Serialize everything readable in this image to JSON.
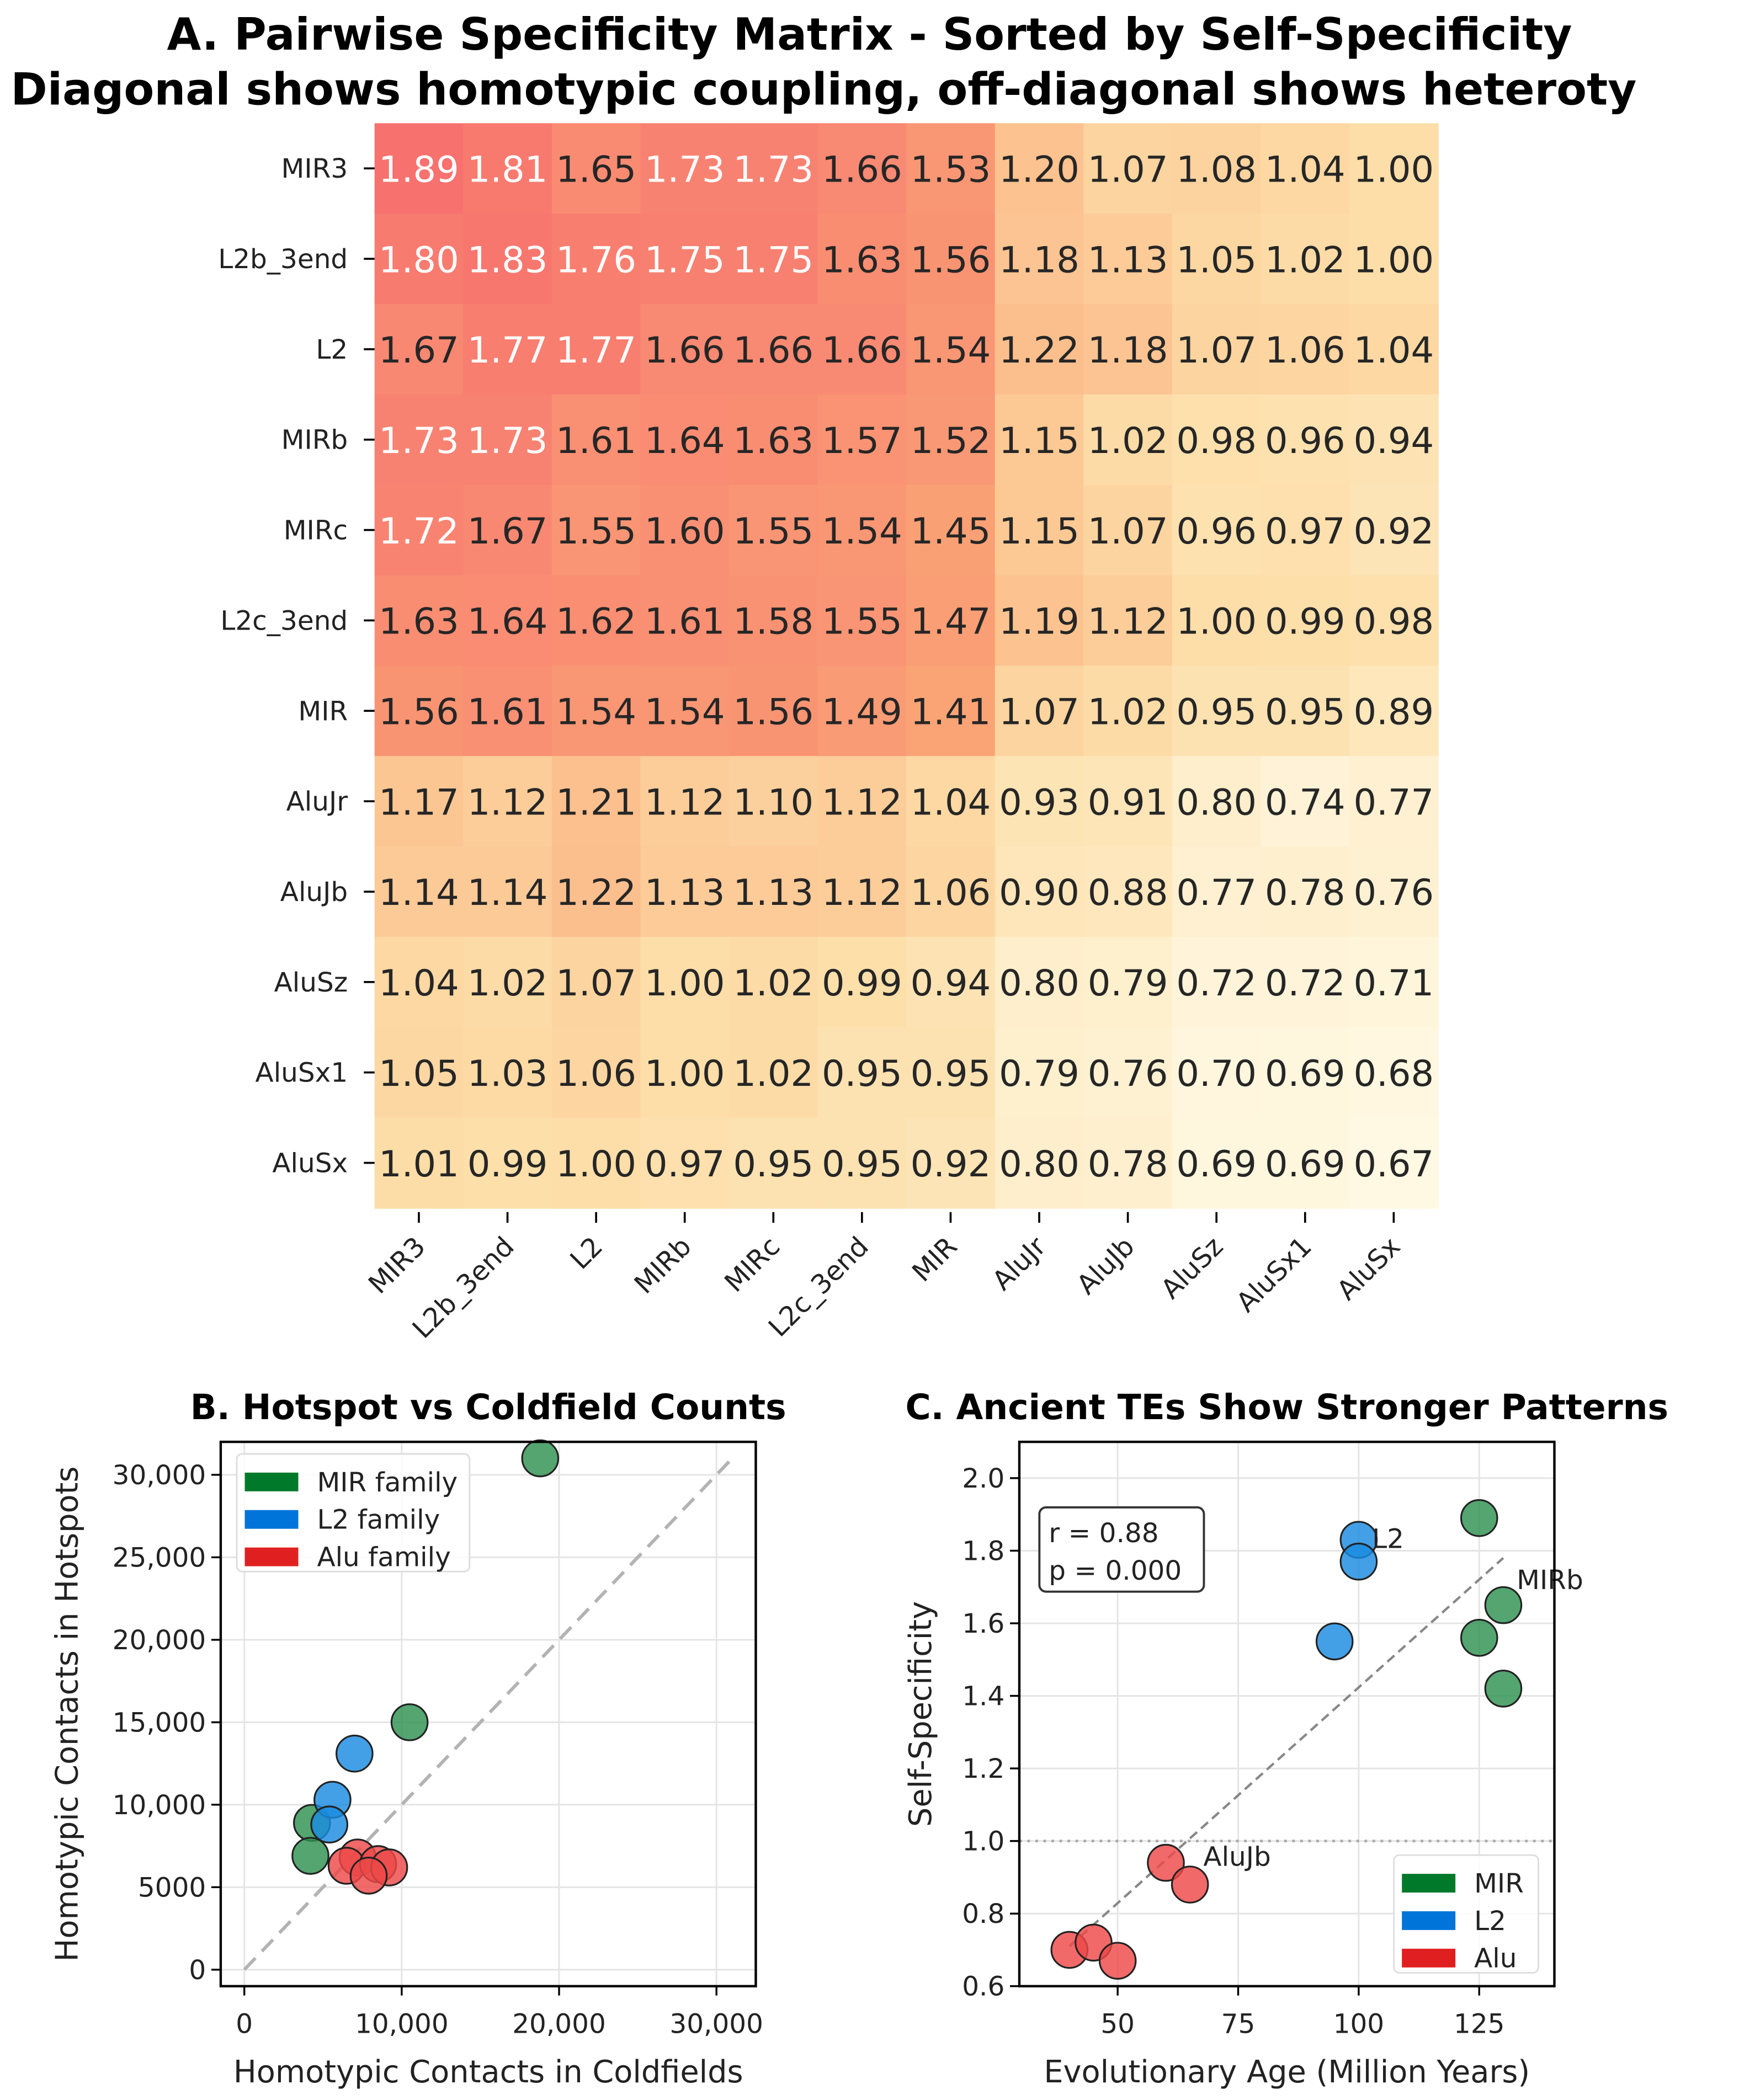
{
  "chart_data": [
    {
      "type": "heatmap",
      "title": "A. Pairwise Specificity Matrix - Sorted by Self-Specificity",
      "subtitle": "Diagonal shows homotypic coupling, off-diagonal shows heteroty",
      "rows": [
        "MIR3",
        "L2b_3end",
        "L2",
        "MIRb",
        "MIRc",
        "L2c_3end",
        "MIR",
        "AluJr",
        "AluJb",
        "AluSz",
        "AluSx1",
        "AluSx"
      ],
      "cols": [
        "MIR3",
        "L2b_3end",
        "L2",
        "MIRb",
        "MIRc",
        "L2c_3end",
        "MIR",
        "AluJr",
        "AluJb",
        "AluSz",
        "AluSx1",
        "AluSx"
      ],
      "values": [
        [
          1.89,
          1.81,
          1.65,
          1.73,
          1.73,
          1.66,
          1.53,
          1.2,
          1.07,
          1.08,
          1.04,
          1.0
        ],
        [
          1.8,
          1.83,
          1.76,
          1.75,
          1.75,
          1.63,
          1.56,
          1.18,
          1.13,
          1.05,
          1.02,
          1.0
        ],
        [
          1.67,
          1.77,
          1.77,
          1.66,
          1.66,
          1.66,
          1.54,
          1.22,
          1.18,
          1.07,
          1.06,
          1.04
        ],
        [
          1.73,
          1.73,
          1.61,
          1.64,
          1.63,
          1.57,
          1.52,
          1.15,
          1.02,
          0.98,
          0.96,
          0.94
        ],
        [
          1.72,
          1.67,
          1.55,
          1.6,
          1.55,
          1.54,
          1.45,
          1.15,
          1.07,
          0.96,
          0.97,
          0.92
        ],
        [
          1.63,
          1.64,
          1.62,
          1.61,
          1.58,
          1.55,
          1.47,
          1.19,
          1.12,
          1.0,
          0.99,
          0.98
        ],
        [
          1.56,
          1.61,
          1.54,
          1.54,
          1.56,
          1.49,
          1.41,
          1.07,
          1.02,
          0.95,
          0.95,
          0.89
        ],
        [
          1.17,
          1.12,
          1.21,
          1.12,
          1.1,
          1.12,
          1.04,
          0.93,
          0.91,
          0.8,
          0.74,
          0.77
        ],
        [
          1.14,
          1.14,
          1.22,
          1.13,
          1.13,
          1.12,
          1.06,
          0.9,
          0.88,
          0.77,
          0.78,
          0.76
        ],
        [
          1.04,
          1.02,
          1.07,
          1.0,
          1.02,
          0.99,
          0.94,
          0.8,
          0.79,
          0.72,
          0.72,
          0.71
        ],
        [
          1.05,
          1.03,
          1.06,
          1.0,
          1.02,
          0.95,
          0.95,
          0.79,
          0.76,
          0.7,
          0.69,
          0.68
        ],
        [
          1.01,
          0.99,
          1.0,
          0.97,
          0.95,
          0.95,
          0.92,
          0.8,
          0.78,
          0.69,
          0.69,
          0.67
        ]
      ]
    },
    {
      "type": "scatter",
      "title": "B. Hotspot vs Coldfield Counts",
      "xlabel": "Homotypic Contacts in Coldfields",
      "ylabel": "Homotypic Contacts in Hotspots",
      "xlim": [
        -1500,
        32500
      ],
      "ylim": [
        -1000,
        32000
      ],
      "xticks": [
        0,
        10000,
        20000,
        30000
      ],
      "xtick_labels": [
        "0",
        "10,000",
        "20,000",
        "30,000"
      ],
      "yticks": [
        0,
        5000,
        10000,
        15000,
        20000,
        25000,
        30000
      ],
      "ytick_labels": [
        "0",
        "5000",
        "10,000",
        "15,000",
        "20,000",
        "25,000",
        "30,000"
      ],
      "grid": true,
      "legend": {
        "placement": "top-left",
        "entries": [
          "MIR family",
          "L2 family",
          "Alu family"
        ]
      },
      "reference_line": {
        "style": "dashed",
        "from": [
          0,
          0
        ],
        "to": [
          31000,
          31000
        ]
      },
      "series": [
        {
          "name": "MIR family",
          "color": "#2e9150",
          "legend_color": "#007a2a",
          "points": [
            [
              18800,
              31000
            ],
            [
              10500,
              15000
            ],
            [
              4300,
              8900
            ],
            [
              4200,
              6900
            ]
          ]
        },
        {
          "name": "L2 family",
          "color": "#1a8be0",
          "legend_color": "#0074d9",
          "points": [
            [
              7000,
              13100
            ],
            [
              5600,
              10300
            ],
            [
              5400,
              8800
            ]
          ]
        },
        {
          "name": "Alu family",
          "color": "#ee4848",
          "legend_color": "#e02020",
          "points": [
            [
              7200,
              6800
            ],
            [
              6500,
              6300
            ],
            [
              8500,
              6400
            ],
            [
              9200,
              6200
            ],
            [
              7900,
              5700
            ]
          ]
        }
      ]
    },
    {
      "type": "scatter",
      "title": "C. Ancient TEs Show Stronger Patterns",
      "xlabel": "Evolutionary Age (Million Years)",
      "ylabel": "Self-Specificity",
      "xlim": [
        29.6,
        140.6
      ],
      "ylim": [
        0.6,
        2.1
      ],
      "xticks": [
        50,
        75,
        100,
        125
      ],
      "xtick_labels": [
        "50",
        "75",
        "100",
        "125"
      ],
      "yticks": [
        0.6,
        0.8,
        1.0,
        1.2,
        1.4,
        1.6,
        1.8,
        2.0
      ],
      "ytick_labels": [
        "0.6",
        "0.8",
        "1.0",
        "1.2",
        "1.4",
        "1.6",
        "1.8",
        "2.0"
      ],
      "grid": true,
      "stats_box": [
        "r = 0.88",
        "p = 0.000"
      ],
      "legend": {
        "placement": "bottom-right",
        "entries": [
          "MIR",
          "L2",
          "Alu"
        ]
      },
      "reference_line": {
        "style": "dotted",
        "y": 1.0
      },
      "trend_line": {
        "style": "dashed",
        "from": [
          40,
          0.71
        ],
        "to": [
          130,
          1.78
        ]
      },
      "annotations": [
        {
          "text": "L2",
          "x": 100,
          "y": 1.83
        },
        {
          "text": "MIRb",
          "x": 130,
          "y": 1.65
        },
        {
          "text": "AluJb",
          "x": 65,
          "y": 0.88
        }
      ],
      "series": [
        {
          "name": "MIR",
          "color": "#2e9150",
          "legend_color": "#007a2a",
          "points": [
            [
              125,
              1.89
            ],
            [
              130,
              1.65
            ],
            [
              125,
              1.56
            ],
            [
              130,
              1.42
            ]
          ]
        },
        {
          "name": "L2",
          "color": "#1a8be0",
          "legend_color": "#0074d9",
          "points": [
            [
              100,
              1.83
            ],
            [
              100,
              1.77
            ],
            [
              95,
              1.55
            ]
          ]
        },
        {
          "name": "Alu",
          "color": "#ee4848",
          "legend_color": "#e02020",
          "points": [
            [
              60,
              0.94
            ],
            [
              65,
              0.88
            ],
            [
              40,
              0.7
            ],
            [
              45,
              0.72
            ],
            [
              50,
              0.67
            ]
          ]
        }
      ]
    }
  ]
}
